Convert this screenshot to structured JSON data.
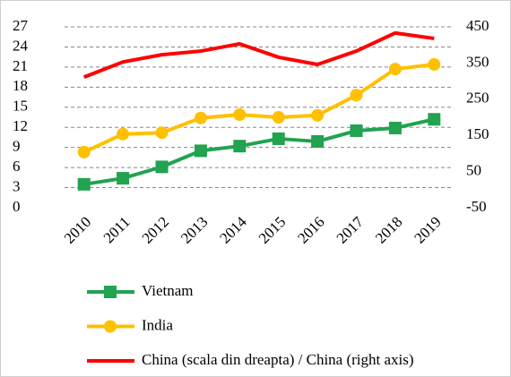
{
  "chart_data": {
    "type": "line",
    "categories": [
      "2010",
      "2011",
      "2012",
      "2013",
      "2014",
      "2015",
      "2016",
      "2017",
      "2018",
      "2019"
    ],
    "series": [
      {
        "name": "Vietnam",
        "color": "#21a34f",
        "marker": "square",
        "values": [
          3.5,
          4.4,
          6.1,
          8.5,
          9.2,
          10.3,
          9.9,
          11.5,
          11.9,
          13.2
        ]
      },
      {
        "name": "India",
        "color": "#ffc000",
        "marker": "circle",
        "values": [
          8.3,
          11.0,
          11.2,
          13.4,
          13.9,
          13.5,
          13.8,
          16.8,
          20.7,
          21.4
        ]
      },
      {
        "name": "China (scala din dreapta) / China (right axis)",
        "color": "#ff0000",
        "axis": "y2",
        "values": [
          311,
          353,
          373,
          383,
          403,
          366,
          346,
          383,
          433,
          418
        ]
      }
    ],
    "ylim": [
      0,
      27
    ],
    "yticks": [
      0,
      3,
      6,
      9,
      12,
      15,
      18,
      21,
      24,
      27
    ],
    "y2lim": [
      -50,
      450
    ],
    "y2ticks": [
      -50,
      50,
      150,
      250,
      350,
      450
    ],
    "grid": true
  }
}
